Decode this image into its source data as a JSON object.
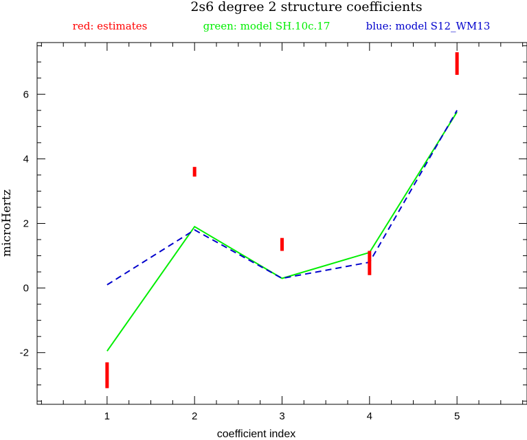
{
  "chart_data": {
    "type": "line",
    "title": "2s6 degree 2 structure coefficients",
    "xlabel": "coefficient index",
    "ylabel": "microHertz",
    "xlim": [
      0.2,
      5.8
    ],
    "ylim": [
      -3.6,
      7.6
    ],
    "x_ticks": [
      1,
      2,
      3,
      4,
      5
    ],
    "y_ticks": [
      -2,
      0,
      2,
      4,
      6
    ],
    "legend": [
      {
        "label": "red: estimates",
        "color": "#ff0000"
      },
      {
        "label": "green: model SH.10c.17",
        "color": "#00ee00"
      },
      {
        "label": "blue: model S12_WM13",
        "color": "#0000cc"
      }
    ],
    "legend_position": "top",
    "estimates": {
      "x": [
        1,
        2,
        3,
        4,
        5
      ],
      "low": [
        -3.1,
        3.45,
        1.15,
        0.4,
        6.6
      ],
      "high": [
        -2.3,
        3.75,
        1.55,
        1.15,
        7.3
      ],
      "color": "#ff0000"
    },
    "series": [
      {
        "x": [
          1,
          2,
          3,
          4,
          5
        ],
        "values": [
          -1.95,
          1.9,
          0.3,
          1.1,
          5.45
        ],
        "color": "#00ee00",
        "style": "solid"
      },
      {
        "x": [
          1,
          2,
          3,
          4,
          5
        ],
        "values": [
          0.1,
          1.8,
          0.3,
          0.8,
          5.5
        ],
        "color": "#0000cc",
        "style": "dashed"
      }
    ]
  }
}
